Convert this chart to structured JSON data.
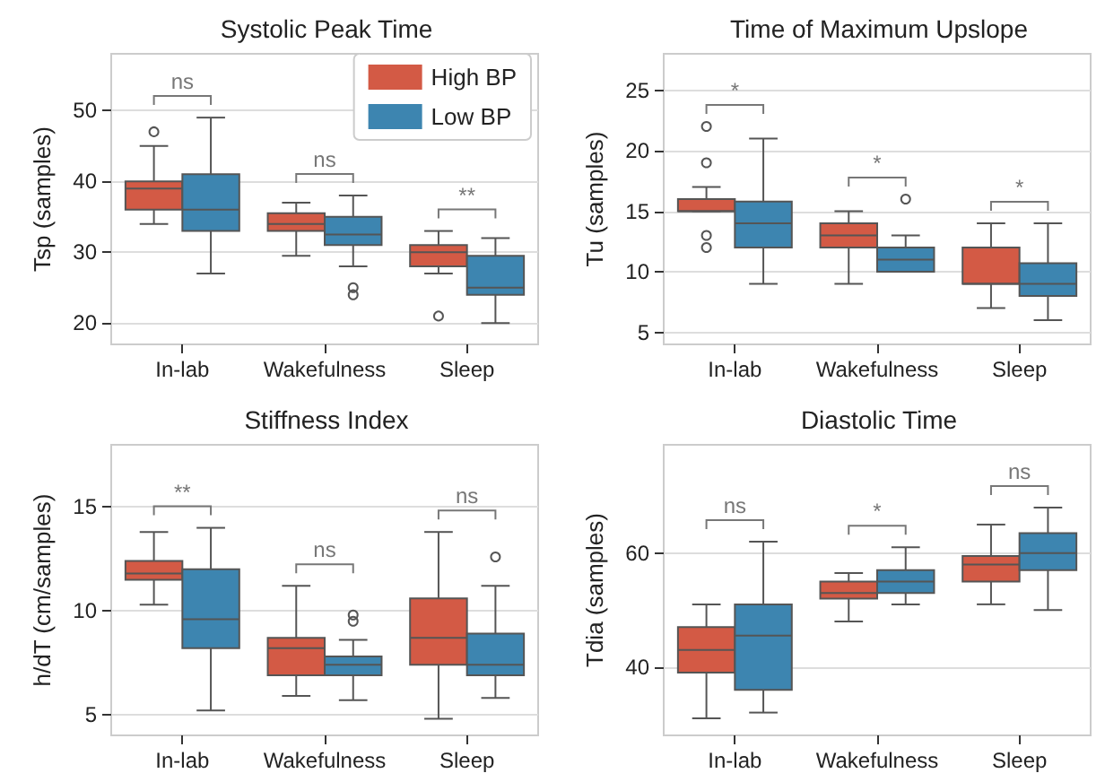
{
  "chart_data": [
    {
      "type": "box",
      "title": "Systolic Peak Time",
      "ylabel": "Tsp (samples)",
      "categories": [
        "In-lab",
        "Wakefulness",
        "Sleep"
      ],
      "ylim": [
        17,
        58
      ],
      "yticks": [
        20,
        30,
        40,
        50
      ],
      "grid": "y",
      "legend": "top right",
      "series": [
        {
          "name": "High BP",
          "color": "#d35a45",
          "boxes": [
            {
              "low": 34,
              "q1": 36,
              "median": 39,
              "q3": 40,
              "high": 45,
              "outliers": [
                47
              ]
            },
            {
              "low": 29.5,
              "q1": 33,
              "median": 34,
              "q3": 35.5,
              "high": 37
            },
            {
              "low": 27,
              "q1": 28,
              "median": 30,
              "q3": 31,
              "high": 33,
              "outliers": [
                21
              ]
            }
          ]
        },
        {
          "name": "Low BP",
          "color": "#3d85b0",
          "boxes": [
            {
              "low": 27,
              "q1": 33,
              "median": 36,
              "q3": 41,
              "high": 49
            },
            {
              "low": 28,
              "q1": 31,
              "median": 32.5,
              "q3": 35,
              "high": 38,
              "outliers": [
                24,
                25
              ]
            },
            {
              "low": 20,
              "q1": 24,
              "median": 25,
              "q3": 29.5,
              "high": 32
            }
          ]
        }
      ],
      "annotations": [
        "ns",
        "ns",
        "**"
      ]
    },
    {
      "type": "box",
      "title": "Time of Maximum Upslope",
      "ylabel": "Tu (samples)",
      "categories": [
        "In-lab",
        "Wakefulness",
        "Sleep"
      ],
      "ylim": [
        4,
        28
      ],
      "yticks": [
        5,
        10,
        15,
        20,
        25
      ],
      "grid": "y",
      "series": [
        {
          "color": "#d35a45",
          "boxes": [
            {
              "low": 15,
              "q1": 15,
              "median": 15,
              "q3": 16,
              "high": 17,
              "outliers": [
                22,
                19,
                13,
                12
              ]
            },
            {
              "low": 9,
              "q1": 12,
              "median": 13,
              "q3": 14,
              "high": 15
            },
            {
              "low": 7,
              "q1": 9,
              "median": 9,
              "q3": 12,
              "high": 14
            }
          ]
        },
        {
          "color": "#3d85b0",
          "boxes": [
            {
              "low": 9,
              "q1": 12,
              "median": 14,
              "q3": 15.8,
              "high": 21
            },
            {
              "low": 10,
              "q1": 10,
              "median": 11,
              "q3": 12,
              "high": 13,
              "outliers": [
                16
              ]
            },
            {
              "low": 6,
              "q1": 8,
              "median": 9,
              "q3": 10.7,
              "high": 14
            }
          ]
        }
      ],
      "annotations": [
        "*",
        "*",
        "*"
      ]
    },
    {
      "type": "box",
      "title": "Stiffness Index",
      "ylabel": "h/dT (cm/samples)",
      "categories": [
        "In-lab",
        "Wakefulness",
        "Sleep"
      ],
      "ylim": [
        4,
        18
      ],
      "yticks": [
        5,
        10,
        15
      ],
      "grid": "y",
      "series": [
        {
          "color": "#d35a45",
          "boxes": [
            {
              "low": 10.3,
              "q1": 11.5,
              "median": 11.8,
              "q3": 12.4,
              "high": 13.8
            },
            {
              "low": 5.9,
              "q1": 6.9,
              "median": 8.2,
              "q3": 8.7,
              "high": 11.2
            },
            {
              "low": 4.8,
              "q1": 7.4,
              "median": 8.7,
              "q3": 10.6,
              "high": 13.8
            }
          ]
        },
        {
          "color": "#3d85b0",
          "boxes": [
            {
              "low": 5.2,
              "q1": 8.2,
              "median": 9.6,
              "q3": 12,
              "high": 14
            },
            {
              "low": 5.7,
              "q1": 6.9,
              "median": 7.4,
              "q3": 7.8,
              "high": 8.6,
              "outliers": [
                9.5,
                9.8
              ]
            },
            {
              "low": 5.8,
              "q1": 6.9,
              "median": 7.4,
              "q3": 8.9,
              "high": 11.2,
              "outliers": [
                12.6
              ]
            }
          ]
        }
      ],
      "annotations": [
        "**",
        "ns",
        "ns"
      ]
    },
    {
      "type": "box",
      "title": "Diastolic Time",
      "ylabel": "Tdia (samples)",
      "categories": [
        "In-lab",
        "Wakefulness",
        "Sleep"
      ],
      "ylim": [
        28,
        79
      ],
      "yticks": [
        40,
        60
      ],
      "grid": "y",
      "series": [
        {
          "color": "#d35a45",
          "boxes": [
            {
              "low": 31,
              "q1": 39,
              "median": 43,
              "q3": 47,
              "high": 51
            },
            {
              "low": 48,
              "q1": 52,
              "median": 53,
              "q3": 55,
              "high": 56.5
            },
            {
              "low": 51,
              "q1": 55,
              "median": 58,
              "q3": 59.5,
              "high": 65
            }
          ]
        },
        {
          "color": "#3d85b0",
          "boxes": [
            {
              "low": 32,
              "q1": 36,
              "median": 45.5,
              "q3": 51,
              "high": 62
            },
            {
              "low": 51,
              "q1": 53,
              "median": 55,
              "q3": 57,
              "high": 61
            },
            {
              "low": 50,
              "q1": 57,
              "median": 60,
              "q3": 63.5,
              "high": 68
            }
          ]
        }
      ],
      "annotations": [
        "ns",
        "*",
        "ns"
      ]
    }
  ]
}
